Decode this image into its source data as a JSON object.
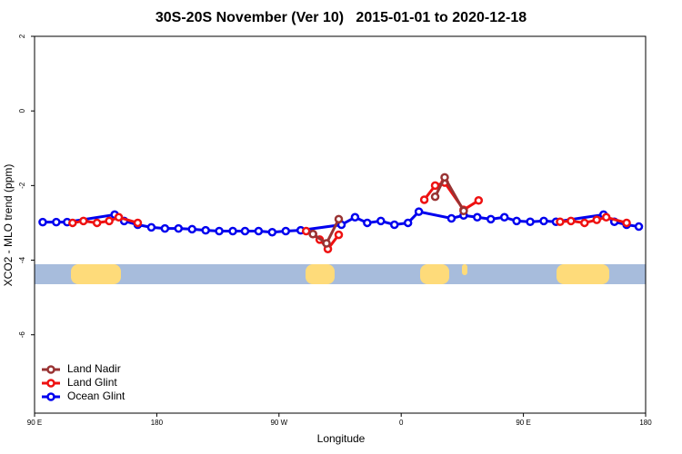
{
  "chart_data": {
    "type": "line",
    "title": "30S-20S November (Ver 10)   2015-01-01 to 2020-12-18",
    "xlabel": "Longitude",
    "ylabel": "XCO2 - MLO trend (ppm)",
    "xlim": [
      90,
      540
    ],
    "ylim": [
      -8.1,
      2
    ],
    "xticks": [
      {
        "value": 90,
        "label": "90 E"
      },
      180,
      {
        "value": 270,
        "label": "90 W"
      },
      {
        "value": 360,
        "label": "0"
      },
      {
        "value": 450,
        "label": "90 E"
      },
      {
        "value": 540,
        "label": "180"
      }
    ],
    "yticks": [
      2,
      0,
      -2,
      -4,
      -6
    ],
    "legend": "bottom-left",
    "series": [
      {
        "name": "Land Nadir",
        "color": "#993333",
        "x": [
          295,
          305,
          314,
          null,
          385,
          392,
          406
        ],
        "values": [
          -3.3,
          -3.55,
          -2.9,
          null,
          -2.3,
          -1.78,
          -2.68
        ]
      },
      {
        "name": "Land Glint",
        "color": "#ee1111",
        "x": [
          118,
          126,
          136,
          145,
          152,
          166,
          null,
          290,
          295,
          300,
          306,
          314,
          null,
          377,
          385,
          392,
          406,
          417,
          null,
          477,
          485,
          495,
          504,
          511,
          526
        ],
        "values": [
          -3.0,
          -2.95,
          -3.0,
          -2.95,
          -2.85,
          -3.0,
          null,
          -3.22,
          -3.3,
          -3.45,
          -3.7,
          -3.32,
          null,
          -2.38,
          -2.0,
          -1.92,
          -2.65,
          -2.4,
          null,
          -2.97,
          -2.95,
          -3.0,
          -2.92,
          -2.85,
          -3.0
        ]
      },
      {
        "name": "Ocean Glint",
        "color": "#0000ee",
        "x": [
          96,
          106,
          114,
          149,
          156,
          166,
          176,
          186,
          196,
          206,
          216,
          226,
          236,
          245,
          255,
          265,
          275,
          286,
          316,
          326,
          335,
          345,
          355,
          365,
          373,
          397,
          406,
          416,
          426,
          436,
          445,
          455,
          465,
          474,
          509,
          517,
          526,
          535
        ],
        "values": [
          -2.98,
          -2.98,
          -2.98,
          -2.78,
          -2.95,
          -3.05,
          -3.12,
          -3.15,
          -3.15,
          -3.17,
          -3.2,
          -3.22,
          -3.22,
          -3.22,
          -3.22,
          -3.25,
          -3.22,
          -3.2,
          -3.05,
          -2.85,
          -3.0,
          -2.95,
          -3.05,
          -3.0,
          -2.7,
          -2.88,
          -2.8,
          -2.85,
          -2.9,
          -2.85,
          -2.95,
          -2.97,
          -2.95,
          -2.97,
          -2.78,
          -2.97,
          -3.05,
          -3.1
        ]
      }
    ]
  }
}
